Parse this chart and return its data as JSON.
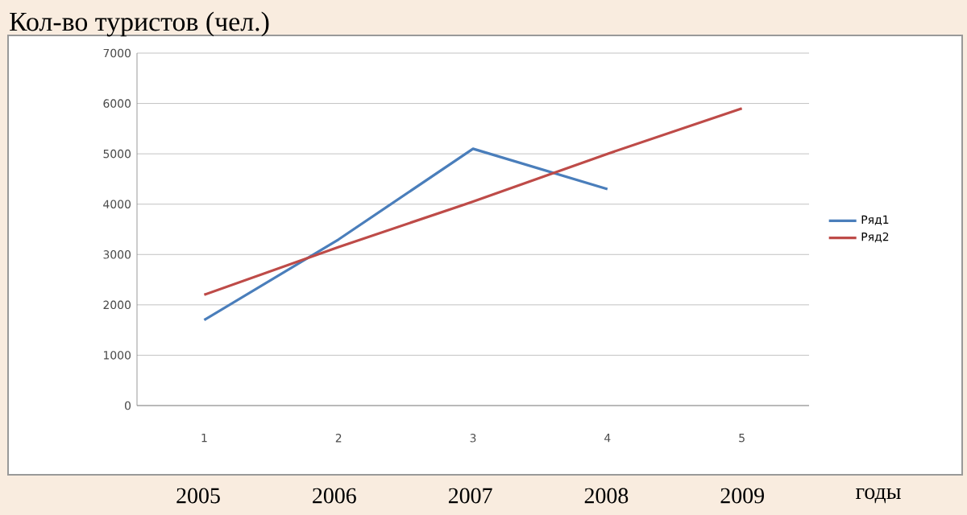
{
  "chart_data": {
    "type": "line",
    "title": "Кол-во туристов (чел.)",
    "categories": [
      "1",
      "2",
      "3",
      "4",
      "5"
    ],
    "series": [
      {
        "name": "Ряд1",
        "color": "#4a7ebb",
        "values": [
          1700,
          3300,
          5100,
          4300,
          null
        ]
      },
      {
        "name": "Ряд2",
        "color": "#be4b48",
        "values": [
          2200,
          3150,
          4050,
          5000,
          5900
        ]
      }
    ],
    "ylim": [
      0,
      7000
    ],
    "yticks": [
      0,
      1000,
      2000,
      3000,
      4000,
      5000,
      6000,
      7000
    ],
    "grid": "y",
    "legend": "right",
    "annotations": [
      "2005",
      "2006",
      "2007",
      "2008",
      "2009",
      "годы"
    ]
  }
}
